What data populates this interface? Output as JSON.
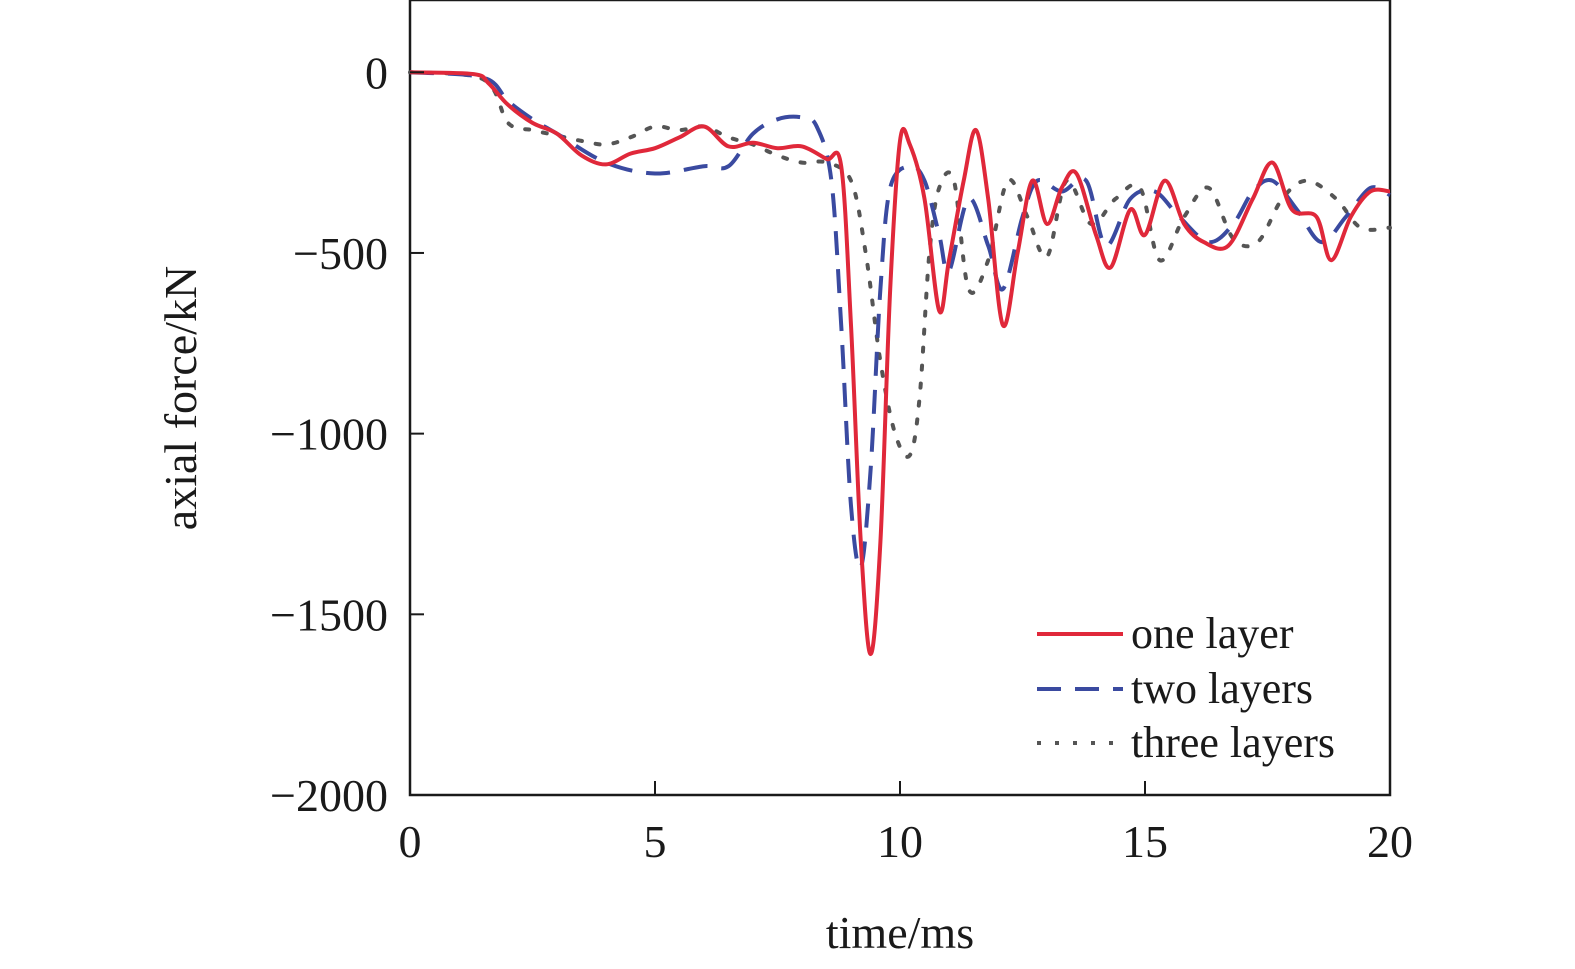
{
  "chart_data": {
    "type": "line",
    "title": "",
    "xlabel": "time/ms",
    "ylabel": "axial force/kN",
    "xlim": [
      0,
      20
    ],
    "ylim": [
      -2000,
      200
    ],
    "xticks": [
      0,
      5,
      10,
      15,
      20
    ],
    "xtick_labels": [
      "0",
      "5",
      "10",
      "15",
      "20"
    ],
    "yticks": [
      0,
      -500,
      -1000,
      -1500,
      -2000
    ],
    "ytick_labels": [
      "0",
      "−500",
      "−1000",
      "−1500",
      "−2000"
    ],
    "grid": false,
    "legend_position": "bottom-right",
    "series": [
      {
        "name": "one layer",
        "color": "#e0283a",
        "style": "solid",
        "points": [
          [
            0,
            0
          ],
          [
            1.3,
            -5
          ],
          [
            1.6,
            -30
          ],
          [
            2,
            -90
          ],
          [
            2.5,
            -140
          ],
          [
            3,
            -170
          ],
          [
            3.5,
            -230
          ],
          [
            4,
            -255
          ],
          [
            4.5,
            -225
          ],
          [
            5,
            -210
          ],
          [
            5.5,
            -180
          ],
          [
            6,
            -150
          ],
          [
            6.5,
            -205
          ],
          [
            7,
            -195
          ],
          [
            7.5,
            -210
          ],
          [
            8,
            -205
          ],
          [
            8.5,
            -240
          ],
          [
            8.8,
            -260
          ],
          [
            9,
            -700
          ],
          [
            9.2,
            -1300
          ],
          [
            9.4,
            -1610
          ],
          [
            9.6,
            -1300
          ],
          [
            9.8,
            -600
          ],
          [
            10,
            -190
          ],
          [
            10.2,
            -200
          ],
          [
            10.5,
            -350
          ],
          [
            10.8,
            -660
          ],
          [
            11,
            -520
          ],
          [
            11.3,
            -300
          ],
          [
            11.55,
            -160
          ],
          [
            11.8,
            -350
          ],
          [
            12.1,
            -700
          ],
          [
            12.4,
            -500
          ],
          [
            12.7,
            -300
          ],
          [
            13,
            -420
          ],
          [
            13.3,
            -320
          ],
          [
            13.6,
            -280
          ],
          [
            14,
            -450
          ],
          [
            14.3,
            -540
          ],
          [
            14.7,
            -380
          ],
          [
            15,
            -450
          ],
          [
            15.4,
            -300
          ],
          [
            15.8,
            -420
          ],
          [
            16.2,
            -470
          ],
          [
            16.7,
            -480
          ],
          [
            17.2,
            -350
          ],
          [
            17.6,
            -250
          ],
          [
            18,
            -380
          ],
          [
            18.5,
            -400
          ],
          [
            18.8,
            -520
          ],
          [
            19.2,
            -400
          ],
          [
            19.6,
            -330
          ],
          [
            20,
            -330
          ]
        ]
      },
      {
        "name": "two layers",
        "color": "#3a4aa0",
        "style": "dashed",
        "points": [
          [
            0,
            0
          ],
          [
            1.5,
            -15
          ],
          [
            2,
            -80
          ],
          [
            2.5,
            -130
          ],
          [
            3,
            -170
          ],
          [
            4,
            -250
          ],
          [
            5,
            -280
          ],
          [
            6,
            -260
          ],
          [
            6.5,
            -260
          ],
          [
            7,
            -170
          ],
          [
            7.5,
            -130
          ],
          [
            8,
            -125
          ],
          [
            8.3,
            -150
          ],
          [
            8.6,
            -300
          ],
          [
            8.8,
            -700
          ],
          [
            9,
            -1200
          ],
          [
            9.2,
            -1370
          ],
          [
            9.4,
            -1100
          ],
          [
            9.6,
            -600
          ],
          [
            9.8,
            -320
          ],
          [
            10.2,
            -260
          ],
          [
            10.5,
            -300
          ],
          [
            10.8,
            -450
          ],
          [
            11,
            -550
          ],
          [
            11.4,
            -350
          ],
          [
            11.8,
            -480
          ],
          [
            12.1,
            -600
          ],
          [
            12.5,
            -400
          ],
          [
            12.8,
            -300
          ],
          [
            13.3,
            -330
          ],
          [
            13.8,
            -300
          ],
          [
            14.2,
            -480
          ],
          [
            14.7,
            -350
          ],
          [
            15.2,
            -330
          ],
          [
            15.7,
            -400
          ],
          [
            16.3,
            -470
          ],
          [
            16.8,
            -420
          ],
          [
            17.2,
            -330
          ],
          [
            17.6,
            -300
          ],
          [
            18.1,
            -380
          ],
          [
            18.6,
            -470
          ],
          [
            19.1,
            -400
          ],
          [
            19.6,
            -320
          ],
          [
            20,
            -340
          ]
        ]
      },
      {
        "name": "three layers",
        "color": "#555555",
        "style": "dotted",
        "points": [
          [
            0,
            0
          ],
          [
            1.5,
            -20
          ],
          [
            2,
            -140
          ],
          [
            2.5,
            -160
          ],
          [
            3,
            -175
          ],
          [
            3.5,
            -190
          ],
          [
            4,
            -200
          ],
          [
            4.5,
            -180
          ],
          [
            5,
            -150
          ],
          [
            5.5,
            -160
          ],
          [
            6,
            -150
          ],
          [
            6.5,
            -180
          ],
          [
            7,
            -200
          ],
          [
            7.5,
            -230
          ],
          [
            8,
            -250
          ],
          [
            8.5,
            -250
          ],
          [
            9,
            -300
          ],
          [
            9.3,
            -500
          ],
          [
            9.6,
            -800
          ],
          [
            9.9,
            -1000
          ],
          [
            10.2,
            -1060
          ],
          [
            10.4,
            -900
          ],
          [
            10.6,
            -500
          ],
          [
            10.8,
            -320
          ],
          [
            11.1,
            -300
          ],
          [
            11.4,
            -600
          ],
          [
            11.8,
            -520
          ],
          [
            12.2,
            -300
          ],
          [
            12.6,
            -400
          ],
          [
            13,
            -510
          ],
          [
            13.4,
            -300
          ],
          [
            13.9,
            -420
          ],
          [
            14.4,
            -350
          ],
          [
            14.9,
            -320
          ],
          [
            15.3,
            -520
          ],
          [
            15.8,
            -400
          ],
          [
            16.3,
            -320
          ],
          [
            16.8,
            -460
          ],
          [
            17.3,
            -470
          ],
          [
            17.8,
            -350
          ],
          [
            18.3,
            -300
          ],
          [
            18.9,
            -350
          ],
          [
            19.4,
            -430
          ],
          [
            20,
            -430
          ]
        ]
      }
    ]
  }
}
